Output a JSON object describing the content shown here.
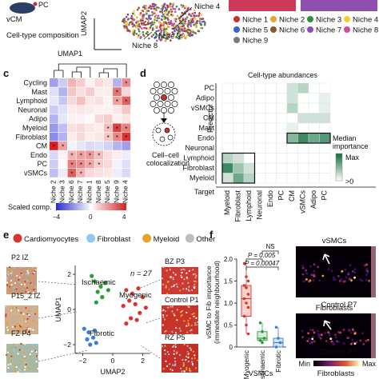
{
  "panel_a": {
    "vcm": "vCM",
    "pc": "PC",
    "composition": "Cell-type composition",
    "umap1": "UMAP1",
    "umap2": "UMAP2",
    "niche_labels": [
      "Niche 4",
      "Niche 9",
      "Niche 8"
    ],
    "legend": [
      {
        "label": "Niche 1",
        "color": "#c8302c"
      },
      {
        "label": "Niche 2",
        "color": "#e8a23a"
      },
      {
        "label": "Niche 3",
        "color": "#2f8f3a"
      },
      {
        "label": "Niche 4",
        "color": "#f1d02a"
      },
      {
        "label": "Niche 5",
        "color": "#3b63c4"
      },
      {
        "label": "Niche 6",
        "color": "#8a5a2b"
      },
      {
        "label": "Niche 7",
        "color": "#8e4fb0"
      },
      {
        "label": "Niche 8",
        "color": "#d24aa0"
      },
      {
        "label": "Niche 9",
        "color": "#7a7a7a"
      }
    ]
  },
  "panel_c": {
    "tag": "c",
    "scaled_label": "Scaled comp.",
    "scale_min": "−4",
    "scale_mid": "0",
    "scale_max": "4"
  },
  "panel_d": {
    "tag": "d",
    "title": "Cell-type abundances",
    "predictor": "Predictor",
    "target": "Target",
    "colocalization": "Cell–cell\ncolocalization",
    "legend_title": "Median\nimportance",
    "legend_max": "Max",
    "legend_min": ">0"
  },
  "panel_e": {
    "tag": "e",
    "legend": [
      {
        "label": "Cardiomyocytes",
        "color": "#d9342b"
      },
      {
        "label": "Fibroblast",
        "color": "#8ec9f0"
      },
      {
        "label": "Myeloid",
        "color": "#e2a52a"
      },
      {
        "label": "Other",
        "color": "#bdbdbd"
      }
    ],
    "samples_left": [
      "P2 IZ",
      "P15_2 IZ",
      "FZ P4"
    ],
    "samples_right": [
      "BZ  P3",
      "Control P1",
      "RZ P5"
    ],
    "groups": [
      {
        "label": "Ischaemic",
        "color": "#2e9b3a"
      },
      {
        "label": "Myogenic",
        "color": "#d9342b"
      },
      {
        "label": "Fibrotic",
        "color": "#3a7fd1"
      }
    ],
    "n_label": "n = 27",
    "umap1": "UMAP1",
    "umap2": "UMAP2",
    "x_ticks": [
      "−2",
      "0",
      "2"
    ],
    "y_ticks": [
      "2",
      "0",
      "−2"
    ]
  },
  "panel_f": {
    "tag": "f",
    "ylabel": "vSMC to Fib importance\n(immediate neighbourhood)",
    "ns": "NS",
    "p1": "P = 0.005",
    "p2": "P = 0.00047",
    "categories": [
      "Myogenic",
      "Ischaemic",
      "Fibrotic"
    ],
    "y_ticks": [
      "0",
      "0.5",
      "1.0",
      "1.5",
      "2.0"
    ],
    "x_title": "VSMCs",
    "img_labels": [
      "vSMCs",
      "Fibroblasts"
    ],
    "controls": [
      "Control P7",
      "Control P7"
    ],
    "scale_min": "Min",
    "scale_max": "Max",
    "bottom_label": "Fibroblasts"
  },
  "chart_data": [
    {
      "type": "heatmap",
      "panel": "c",
      "rows": [
        "Cycling",
        "Mast",
        "Lymphoid",
        "Neuronal",
        "Adipo",
        "Myeloid",
        "Fibroblast",
        "CM",
        "Endo",
        "PC",
        "vSMCs"
      ],
      "columns": [
        "Niche 2",
        "Niche 3",
        "Niche 6",
        "Niche 7",
        "Niche 1",
        "Niche 8",
        "Niche 5",
        "Niche 9",
        "Niche 4"
      ],
      "values": [
        [
          -1.5,
          -0.8,
          1.2,
          0.8,
          0.2,
          0.6,
          0.4,
          -1.2,
          1.8
        ],
        [
          -0.5,
          -1.2,
          0.9,
          0.5,
          0.8,
          0.3,
          0.3,
          2.2,
          0.6
        ],
        [
          -0.4,
          -0.9,
          0.6,
          1.0,
          0.4,
          0.5,
          0.2,
          1.5,
          2.5
        ],
        [
          -0.8,
          -0.5,
          0.3,
          0.4,
          0.3,
          0.2,
          0.2,
          0.4,
          0.9
        ],
        [
          -1.2,
          -0.4,
          0.2,
          0.2,
          0.1,
          0.6,
          0.8,
          0.2,
          0.4
        ],
        [
          -1.6,
          -1.0,
          0.5,
          0.6,
          0.4,
          0.3,
          1.0,
          3.0,
          2.0
        ],
        [
          -1.8,
          -1.2,
          0.3,
          0.6,
          0.3,
          0.4,
          0.9,
          1.9,
          3.2
        ],
        [
          3.5,
          1.5,
          -0.2,
          -0.4,
          -0.6,
          -0.5,
          -0.7,
          -1.2,
          -1.5
        ],
        [
          -0.6,
          0.2,
          1.2,
          1.5,
          1.6,
          1.0,
          0.5,
          0.3,
          -0.3
        ],
        [
          -0.8,
          0.1,
          2.0,
          1.8,
          1.4,
          0.8,
          0.6,
          -0.2,
          -0.5
        ],
        [
          -1.0,
          -0.3,
          2.5,
          1.2,
          0.6,
          0.5,
          0.4,
          -0.3,
          -0.6
        ]
      ],
      "stars": [
        [
          0,
          0,
          0,
          0,
          0,
          0,
          0,
          0,
          1
        ],
        [
          0,
          0,
          0,
          0,
          0,
          0,
          0,
          1,
          0
        ],
        [
          0,
          0,
          0,
          0,
          0,
          0,
          0,
          1,
          1
        ],
        [
          0,
          0,
          0,
          0,
          0,
          0,
          0,
          0,
          0
        ],
        [
          0,
          0,
          0,
          0,
          0,
          0,
          0,
          0,
          0
        ],
        [
          0,
          0,
          0,
          0,
          0,
          0,
          1,
          1,
          1
        ],
        [
          0,
          0,
          0,
          0,
          0,
          0,
          1,
          1,
          1
        ],
        [
          1,
          1,
          0,
          0,
          0,
          0,
          0,
          0,
          0
        ],
        [
          0,
          0,
          1,
          1,
          1,
          1,
          0,
          0,
          0
        ],
        [
          0,
          0,
          1,
          1,
          1,
          1,
          0,
          0,
          0
        ],
        [
          0,
          0,
          1,
          1,
          0,
          0,
          0,
          0,
          0
        ]
      ],
      "ylim": [
        -4,
        4
      ]
    },
    {
      "type": "heatmap",
      "panel": "d",
      "rows": [
        "PC",
        "Adipo",
        "vSMCs",
        "CM",
        "Mast",
        "Endo",
        "Neuronal",
        "Lymphoid",
        "Fibroblast",
        "Myeloid"
      ],
      "columns": [
        "Myeloid",
        "Fibroblast",
        "Lymphoid",
        "Neuronal",
        "Endo",
        "PC",
        "CM",
        "vSMCs",
        "Adipo",
        "PC"
      ],
      "values": [
        [
          0,
          0,
          0,
          0,
          0,
          0,
          0.2,
          0.3,
          0,
          0
        ],
        [
          0,
          0,
          0,
          0,
          0,
          0,
          0.2,
          0,
          0,
          0.1
        ],
        [
          0,
          0,
          0,
          0,
          0,
          0,
          0.3,
          0,
          0,
          0.1
        ],
        [
          0,
          0,
          0,
          0,
          0,
          0,
          0,
          0.2,
          0.2,
          0.2
        ],
        [
          0,
          0,
          0,
          0,
          0,
          0,
          0.1,
          0,
          0,
          0
        ],
        [
          0,
          0,
          0,
          0,
          0,
          0,
          0.5,
          0.8,
          0.6,
          0.7
        ],
        [
          0,
          0,
          0,
          0,
          0,
          0,
          0,
          0,
          0,
          0
        ],
        [
          0.3,
          0.2,
          0,
          0,
          0,
          0,
          0,
          0,
          0,
          0
        ],
        [
          0.8,
          0.4,
          0.2,
          0,
          0,
          0,
          0,
          0,
          0,
          0
        ],
        [
          0.2,
          0.6,
          0.3,
          0,
          0,
          0,
          0,
          0,
          0,
          0
        ]
      ]
    },
    {
      "type": "scatter",
      "panel": "e",
      "series": [
        {
          "name": "Ischaemic",
          "x": [
            -1.2,
            -0.8,
            -1.0,
            -0.5,
            -1.4,
            -0.7,
            -1.1,
            -0.3
          ],
          "y": [
            1.6,
            1.3,
            1.0,
            1.5,
            1.9,
            0.7,
            0.4,
            1.1
          ]
        },
        {
          "name": "Myogenic",
          "x": [
            0.9,
            1.3,
            1.7,
            1.1,
            2.0,
            0.7,
            1.5,
            1.8,
            1.2,
            2.2,
            0.9,
            1.6
          ],
          "y": [
            1.1,
            0.9,
            1.2,
            0.5,
            0.7,
            0.2,
            0.3,
            -0.2,
            -0.5,
            0.1,
            -0.8,
            -0.6
          ]
        },
        {
          "name": "Fibrotic",
          "x": [
            -1.6,
            -1.3,
            -1.9,
            -1.1,
            -1.5,
            -1.7,
            -1.2
          ],
          "y": [
            -1.3,
            -1.6,
            -1.1,
            -1.9,
            -2.0,
            -1.7,
            -1.2
          ]
        }
      ],
      "xlabel": "UMAP2",
      "ylabel": "UMAP1",
      "xlim": [
        -2.5,
        2.5
      ],
      "ylim": [
        -2.5,
        2.5
      ]
    },
    {
      "type": "box",
      "panel": "f",
      "categories": [
        "Myogenic",
        "Ischaemic",
        "Fibrotic"
      ],
      "ylabel": "vSMC to Fib importance\n(immediate neighbourhood)",
      "ylim": [
        0,
        2.0
      ],
      "points": [
        [
          1.9,
          1.6,
          1.5,
          1.4,
          1.35,
          1.2,
          1.1,
          1.0,
          0.9,
          0.7,
          0.5,
          0.3
        ],
        [
          0.55,
          0.35,
          0.2,
          0.15,
          0.1
        ],
        [
          0.45,
          0.2,
          0.1,
          0.0
        ]
      ]
    }
  ]
}
